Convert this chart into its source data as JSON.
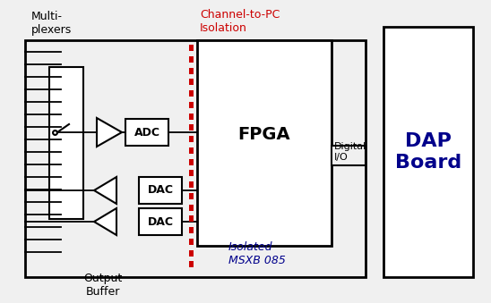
{
  "bg_color": "#f0f0f0",
  "multiplexers_label": "Multi-\nplexers",
  "output_buffer_label": "Output\nBuffer",
  "channel_isolation_label": "Channel-to-PC\nIsolation",
  "fpga_label": "FPGA",
  "adc_label": "ADC",
  "dac_label": "DAC",
  "digital_io_label": "Digital\nI/O",
  "isolated_label": "Isolated\nMSXB 085",
  "dap_board_label": "DAP\nBoard",
  "red_color": "#cc0000",
  "blue_color": "#00008B",
  "black_color": "#000000",
  "white_color": "#ffffff"
}
